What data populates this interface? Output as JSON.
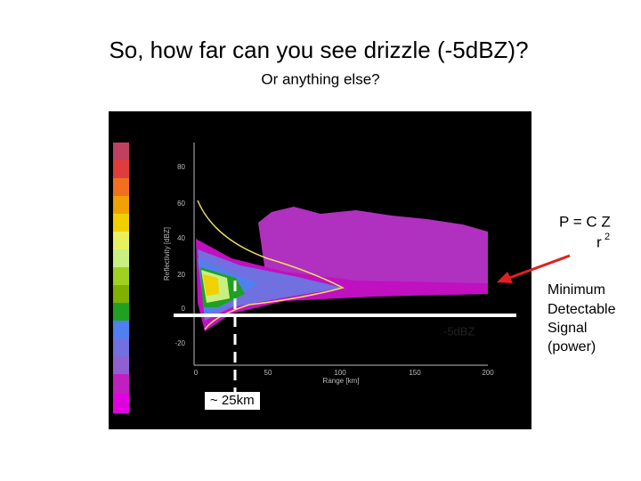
{
  "slide": {
    "title": "So, how far can you see drizzle (-5dBZ)?",
    "subtitle": "Or anything else?",
    "formula": {
      "numerator": "P = C Z",
      "denominator": "r",
      "exponent": "2"
    },
    "callout": [
      "Minimum",
      "Detectable",
      "Signal",
      "(power)"
    ],
    "figure": {
      "threshold_label": "-5dBZ",
      "range_label": "~ 25km",
      "y_axis_label": "Reflectivity [dBZ]",
      "x_axis_label": "Range [km]",
      "y_tick_labels": [
        "80",
        "60",
        "40",
        "20",
        "0",
        "-20"
      ],
      "x_tick_labels": [
        "0",
        "50",
        "100",
        "150",
        "200"
      ]
    }
  }
}
